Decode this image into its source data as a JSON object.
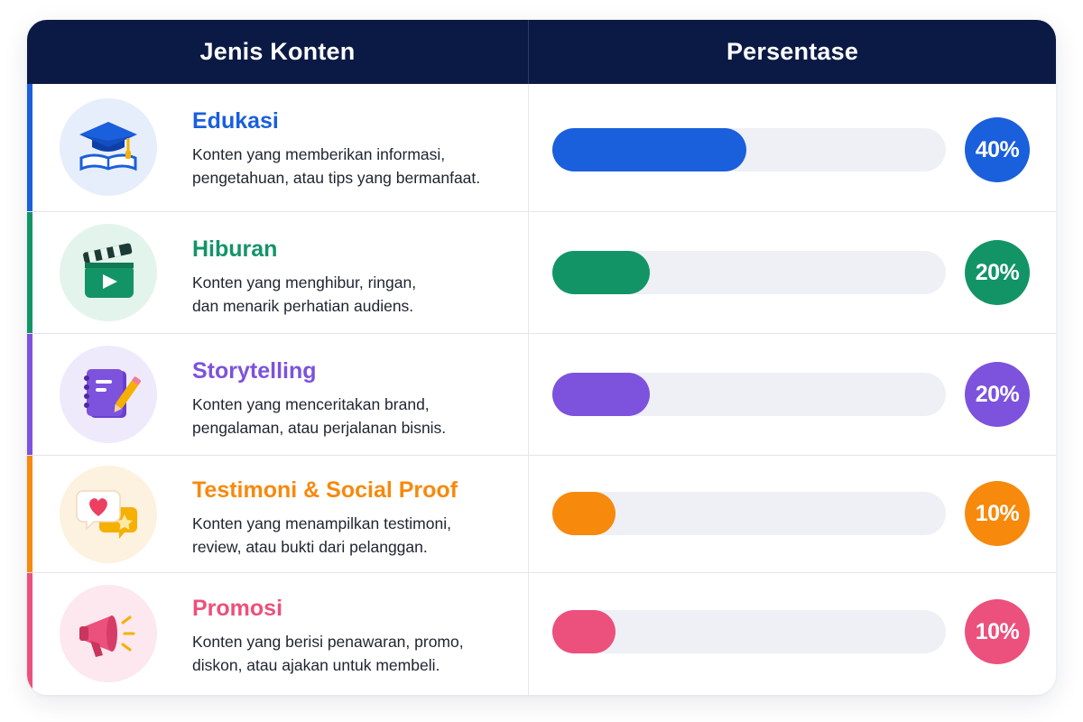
{
  "header": {
    "col_type": "Jenis Konten",
    "col_percent": "Persentase"
  },
  "chart_data": {
    "type": "bar",
    "orientation": "horizontal",
    "xlim": [
      0,
      100
    ],
    "categories": [
      "Edukasi",
      "Hiburan",
      "Storytelling",
      "Testimoni & Social Proof",
      "Promosi"
    ],
    "values": [
      40,
      20,
      20,
      10,
      10
    ],
    "value_labels": [
      "40%",
      "20%",
      "20%",
      "10%",
      "10%"
    ]
  },
  "rows": [
    {
      "title": "Edukasi",
      "desc": "Konten yang memberikan informasi,\npengetahuan, atau tips yang bermanfaat.",
      "label": "40%",
      "value": 40,
      "color": "#1a5fdb",
      "tint": "#e6eefb",
      "icon": "graduation-cap-icon"
    },
    {
      "title": "Hiburan",
      "desc": "Konten yang menghibur, ringan,\ndan menarik perhatian audiens.",
      "label": "20%",
      "value": 20,
      "color": "#139467",
      "tint": "#e3f4ec",
      "icon": "clapperboard-icon"
    },
    {
      "title": "Storytelling",
      "desc": "Konten yang menceritakan brand,\npengalaman, atau perjalanan bisnis.",
      "label": "20%",
      "value": 20,
      "color": "#7d52dd",
      "tint": "#eeeafb",
      "icon": "notebook-pencil-icon"
    },
    {
      "title": "Testimoni & Social Proof",
      "desc": "Konten yang menampilkan testimoni,\nreview, atau bukti dari pelanggan.",
      "label": "10%",
      "value": 10,
      "color": "#f7890d",
      "tint": "#fdf1df",
      "icon": "heart-speech-bubble-icon"
    },
    {
      "title": "Promosi",
      "desc": "Konten yang berisi penawaran, promo,\ndiskon, atau ajakan untuk membeli.",
      "label": "10%",
      "value": 10,
      "color": "#ec507c",
      "tint": "#fce8ee",
      "icon": "megaphone-icon"
    }
  ]
}
